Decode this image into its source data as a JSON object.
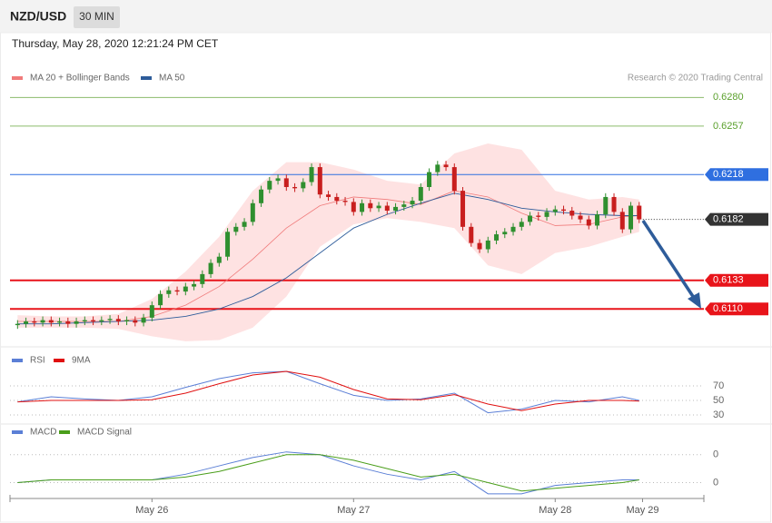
{
  "header": {
    "symbol": "NZD/USD",
    "interval": "30 MIN"
  },
  "timestamp": "Thursday, May 28, 2020 12:21:24 PM CET",
  "credit": "Research © 2020 Trading Central",
  "chart_data": [
    {
      "type": "candlestick",
      "up_color": "#2f8f2f",
      "down_color": "#c81e1e",
      "xlim": [
        -16.9,
        65.7
      ],
      "xticks": [
        {
          "value": 0,
          "label": "May 26"
        },
        {
          "value": 24,
          "label": "May 27"
        },
        {
          "value": 48,
          "label": "May 28"
        },
        {
          "value": 58.4,
          "label": "May 29"
        }
      ],
      "ylim": [
        0.6081,
        0.6289
      ],
      "x": [
        -16,
        -15,
        -14,
        -13,
        -12,
        -11,
        -10,
        -9,
        -8,
        -7,
        -6,
        -5,
        -4,
        -3,
        -2,
        -1,
        0,
        1,
        2,
        3,
        4,
        5,
        6,
        7,
        8,
        9,
        10,
        11,
        12,
        13,
        14,
        15,
        16,
        17,
        18,
        19,
        20,
        21,
        22,
        23,
        24,
        25,
        26,
        27,
        28,
        29,
        30,
        31,
        32,
        33,
        34,
        35,
        36,
        37,
        38,
        39,
        40,
        41,
        42,
        43,
        44,
        45,
        46,
        47,
        48,
        49,
        50,
        51,
        52,
        53,
        54,
        55,
        56,
        57,
        58
      ],
      "open": [
        0.6097,
        0.6098,
        0.61,
        0.6099,
        0.6101,
        0.6099,
        0.61,
        0.6098,
        0.61,
        0.6101,
        0.61,
        0.6101,
        0.6102,
        0.61,
        0.6101,
        0.6099,
        0.6103,
        0.6113,
        0.6122,
        0.6125,
        0.6124,
        0.6128,
        0.613,
        0.6138,
        0.6147,
        0.6152,
        0.6172,
        0.6176,
        0.618,
        0.6195,
        0.6206,
        0.6213,
        0.6215,
        0.6208,
        0.6207,
        0.6212,
        0.6224,
        0.6202,
        0.62,
        0.6197,
        0.6196,
        0.6188,
        0.6195,
        0.6191,
        0.6193,
        0.6189,
        0.6192,
        0.6194,
        0.6197,
        0.6208,
        0.622,
        0.6226,
        0.6224,
        0.6205,
        0.6176,
        0.6163,
        0.6158,
        0.6165,
        0.617,
        0.6172,
        0.6176,
        0.618,
        0.6185,
        0.6184,
        0.6188,
        0.619,
        0.6189,
        0.6185,
        0.6182,
        0.6177,
        0.6186,
        0.62,
        0.6188,
        0.6174,
        0.6193
      ],
      "high": [
        0.6101,
        0.6103,
        0.6103,
        0.6104,
        0.6104,
        0.6103,
        0.6103,
        0.6103,
        0.6104,
        0.6104,
        0.6104,
        0.6105,
        0.6105,
        0.6104,
        0.6104,
        0.6106,
        0.6116,
        0.6125,
        0.6128,
        0.6128,
        0.6131,
        0.6133,
        0.6141,
        0.615,
        0.6155,
        0.6175,
        0.6179,
        0.6183,
        0.6198,
        0.6209,
        0.6216,
        0.6218,
        0.6218,
        0.6211,
        0.6215,
        0.6227,
        0.6227,
        0.6205,
        0.6203,
        0.62,
        0.6199,
        0.6198,
        0.6198,
        0.6196,
        0.6196,
        0.6195,
        0.6197,
        0.62,
        0.6211,
        0.6223,
        0.6229,
        0.6229,
        0.6227,
        0.6208,
        0.6179,
        0.6166,
        0.6168,
        0.6173,
        0.6175,
        0.6179,
        0.6183,
        0.6188,
        0.6188,
        0.6191,
        0.6193,
        0.6193,
        0.6192,
        0.6188,
        0.6185,
        0.6189,
        0.6203,
        0.6203,
        0.6191,
        0.6196,
        0.6196
      ],
      "low": [
        0.6094,
        0.6095,
        0.6096,
        0.6096,
        0.6096,
        0.6096,
        0.6095,
        0.6095,
        0.6097,
        0.6097,
        0.6097,
        0.6098,
        0.6097,
        0.6097,
        0.6096,
        0.6096,
        0.61,
        0.611,
        0.6119,
        0.6121,
        0.6121,
        0.6125,
        0.6127,
        0.6135,
        0.6144,
        0.6149,
        0.6169,
        0.6173,
        0.6177,
        0.6192,
        0.6203,
        0.621,
        0.6205,
        0.6204,
        0.6204,
        0.6209,
        0.6199,
        0.6197,
        0.6194,
        0.6193,
        0.6185,
        0.6185,
        0.6188,
        0.6188,
        0.6186,
        0.6186,
        0.6189,
        0.6191,
        0.6194,
        0.6205,
        0.6217,
        0.6221,
        0.6202,
        0.6173,
        0.616,
        0.6155,
        0.6155,
        0.6162,
        0.6167,
        0.6169,
        0.6173,
        0.6177,
        0.6181,
        0.6181,
        0.6185,
        0.6186,
        0.6182,
        0.6179,
        0.6174,
        0.6174,
        0.6183,
        0.6185,
        0.6171,
        0.6171,
        0.6179
      ],
      "close": [
        0.6098,
        0.61,
        0.6099,
        0.6101,
        0.6099,
        0.61,
        0.6098,
        0.61,
        0.6101,
        0.61,
        0.6101,
        0.6102,
        0.61,
        0.6101,
        0.6099,
        0.6103,
        0.6113,
        0.6122,
        0.6125,
        0.6124,
        0.6128,
        0.613,
        0.6138,
        0.6147,
        0.6152,
        0.6172,
        0.6176,
        0.618,
        0.6195,
        0.6206,
        0.6213,
        0.6215,
        0.6208,
        0.6207,
        0.6212,
        0.6224,
        0.6202,
        0.62,
        0.6197,
        0.6196,
        0.6188,
        0.6195,
        0.6191,
        0.6193,
        0.6189,
        0.6192,
        0.6194,
        0.6197,
        0.6208,
        0.622,
        0.6226,
        0.6224,
        0.6205,
        0.6176,
        0.6163,
        0.6158,
        0.6165,
        0.617,
        0.6172,
        0.6176,
        0.618,
        0.6185,
        0.6184,
        0.6188,
        0.619,
        0.6189,
        0.6185,
        0.6182,
        0.6177,
        0.6186,
        0.62,
        0.6188,
        0.6174,
        0.6193,
        0.6182
      ],
      "bollinger": {
        "name": "MA 20 + Bollinger Bands",
        "color": "#f07b7b",
        "fill": "#fdd8d8",
        "x": [
          -16,
          -12,
          -8,
          -4,
          0,
          4,
          8,
          12,
          16,
          20,
          24,
          28,
          32,
          36,
          40,
          44,
          48,
          52,
          56,
          58
        ],
        "middle": [
          0.61,
          0.61,
          0.61,
          0.61,
          0.6104,
          0.6113,
          0.6128,
          0.615,
          0.6175,
          0.6193,
          0.62,
          0.6198,
          0.6194,
          0.6205,
          0.62,
          0.6187,
          0.6177,
          0.6178,
          0.6184,
          0.6185
        ],
        "upper": [
          0.6105,
          0.6104,
          0.6104,
          0.6106,
          0.6118,
          0.614,
          0.6168,
          0.6205,
          0.6228,
          0.6228,
          0.6222,
          0.6213,
          0.621,
          0.6235,
          0.6243,
          0.6238,
          0.6205,
          0.6198,
          0.62,
          0.6198
        ],
        "lower": [
          0.6095,
          0.6095,
          0.6095,
          0.6094,
          0.6088,
          0.6084,
          0.6085,
          0.6095,
          0.612,
          0.616,
          0.6178,
          0.6183,
          0.618,
          0.6175,
          0.6145,
          0.6138,
          0.6155,
          0.616,
          0.6168,
          0.6172
        ]
      },
      "ma50": {
        "name": "MA 50",
        "color": "#2e5c9a",
        "x": [
          -16,
          -12,
          -8,
          -4,
          0,
          4,
          8,
          12,
          16,
          20,
          24,
          28,
          32,
          36,
          40,
          44,
          48,
          52,
          56,
          58
        ],
        "values": [
          0.6098,
          0.6098,
          0.6099,
          0.61,
          0.6101,
          0.6104,
          0.611,
          0.612,
          0.6135,
          0.6155,
          0.6175,
          0.6186,
          0.6195,
          0.6203,
          0.6198,
          0.6191,
          0.6188,
          0.6186,
          0.6185,
          0.6185
        ]
      },
      "levels": [
        {
          "value": 0.628,
          "label": "0.6280",
          "color": "#5aa02c",
          "badge": false,
          "line": "solid"
        },
        {
          "value": 0.6257,
          "label": "0.6257",
          "color": "#5aa02c",
          "badge": false,
          "line": "solid"
        },
        {
          "value": 0.6218,
          "label": "0.6218",
          "color": "#2f6fe0",
          "badge": true,
          "line": "solid"
        },
        {
          "value": 0.6182,
          "label": "0.6182",
          "color": "#333333",
          "badge": true,
          "line": "dotted"
        },
        {
          "value": 0.6133,
          "label": "0.6133",
          "color": "#e8141a",
          "badge": true,
          "line": "thick"
        },
        {
          "value": 0.611,
          "label": "0.6110",
          "color": "#e8141a",
          "badge": true,
          "line": "thick"
        }
      ]
    },
    {
      "type": "line",
      "ylim": [
        25,
        112.5
      ],
      "yticks": [
        70,
        50,
        30
      ],
      "series": [
        {
          "name": "RSI",
          "color": "#5b7fd6",
          "x": [
            -16,
            -12,
            -8,
            -4,
            0,
            4,
            8,
            12,
            16,
            20,
            24,
            28,
            32,
            36,
            40,
            44,
            48,
            52,
            56,
            58
          ],
          "values": [
            48,
            55,
            52,
            50,
            55,
            68,
            80,
            88,
            90,
            73,
            57,
            50,
            52,
            60,
            33,
            38,
            50,
            48,
            55,
            50
          ]
        },
        {
          "name": "9MA",
          "color": "#e01010",
          "x": [
            -16,
            -12,
            -8,
            -4,
            0,
            4,
            8,
            12,
            16,
            20,
            24,
            28,
            32,
            36,
            40,
            44,
            48,
            52,
            56,
            58
          ],
          "values": [
            48,
            50,
            50,
            50,
            51,
            60,
            73,
            85,
            90,
            82,
            65,
            52,
            51,
            58,
            45,
            36,
            45,
            50,
            50,
            49
          ]
        }
      ]
    },
    {
      "type": "line",
      "ylim": [
        -0.0006,
        0.002
      ],
      "yticks": [
        {
          "value": 0.001,
          "label": "0"
        },
        {
          "value": 0,
          "label": "0"
        }
      ],
      "series": [
        {
          "name": "MACD",
          "color": "#5b7fd6",
          "x": [
            -16,
            -12,
            -8,
            -4,
            0,
            4,
            8,
            12,
            16,
            20,
            24,
            28,
            32,
            36,
            40,
            44,
            48,
            52,
            56,
            58
          ],
          "values": [
            0,
            0.0001,
            0.0001,
            0.0001,
            0.0001,
            0.0003,
            0.0006,
            0.0009,
            0.0011,
            0.001,
            0.0006,
            0.0003,
            0.0001,
            0.0004,
            -0.0004,
            -0.0004,
            -0.0001,
            0,
            0.0001,
            0.0001
          ]
        },
        {
          "name": "MACD Signal",
          "color": "#4a9e1a",
          "x": [
            -16,
            -12,
            -8,
            -4,
            0,
            4,
            8,
            12,
            16,
            20,
            24,
            28,
            32,
            36,
            40,
            44,
            48,
            52,
            56,
            58
          ],
          "values": [
            0,
            0.0001,
            0.0001,
            0.0001,
            0.0001,
            0.0002,
            0.0004,
            0.0007,
            0.001,
            0.001,
            0.0008,
            0.0005,
            0.0002,
            0.0003,
            0,
            -0.0003,
            -0.0002,
            -0.0001,
            0,
            0.0001
          ]
        }
      ]
    }
  ]
}
